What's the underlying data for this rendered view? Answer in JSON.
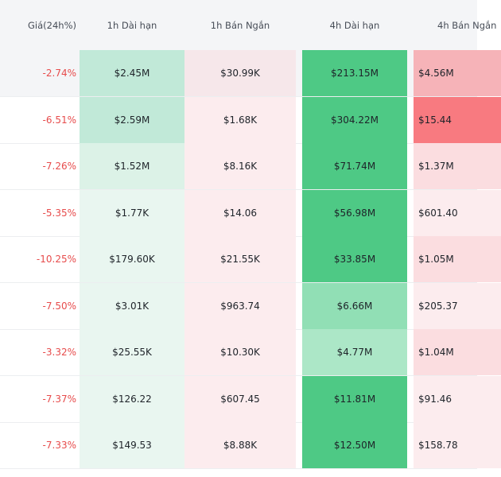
{
  "headers": {
    "price": "Giá(24h%)",
    "h1_long": "1h Dài hạn",
    "h1_short": "1h Bán Ngắn",
    "h4_long": "4h Dài hạn",
    "h4_short": "4h Bán Ngắn"
  },
  "rows": [
    {
      "price": "-2.74%",
      "h1_long": "$2.45M",
      "h1_short": "$30.99K",
      "h4_long": "$213.15M",
      "h4_short": "$4.56M"
    },
    {
      "price": "-6.51%",
      "h1_long": "$2.59M",
      "h1_short": "$1.68K",
      "h4_long": "$304.22M",
      "h4_short": "$15.44"
    },
    {
      "price": "-7.26%",
      "h1_long": "$1.52M",
      "h1_short": "$8.16K",
      "h4_long": "$71.74M",
      "h4_short": "$1.37M"
    },
    {
      "price": "-5.35%",
      "h1_long": "$1.77K",
      "h1_short": "$14.06",
      "h4_long": "$56.98M",
      "h4_short": "$601.40"
    },
    {
      "price": "-10.25%",
      "h1_long": "$179.60K",
      "h1_short": "$21.55K",
      "h4_long": "$33.85M",
      "h4_short": "$1.05M"
    },
    {
      "price": "-7.50%",
      "h1_long": "$3.01K",
      "h1_short": "$963.74",
      "h4_long": "$6.66M",
      "h4_short": "$205.37"
    },
    {
      "price": "-3.32%",
      "h1_long": "$25.55K",
      "h1_short": "$10.30K",
      "h4_long": "$4.77M",
      "h4_short": "$1.04M"
    },
    {
      "price": "-7.37%",
      "h1_long": "$126.22",
      "h1_short": "$607.45",
      "h4_long": "$11.81M",
      "h4_short": "$91.46"
    },
    {
      "price": "-7.33%",
      "h1_long": "$149.53",
      "h1_short": "$8.88K",
      "h4_long": "$12.50M",
      "h4_short": "$158.78"
    }
  ],
  "colors": {
    "price_negative": "#e74c4c",
    "h1_long_bg": [
      "#c1e9d8",
      "#c1e9d8",
      "#dcf2e7",
      "#e9f6f0",
      "#e9f6f0",
      "#e9f6f0",
      "#e9f6f0",
      "#e9f6f0",
      "#e9f6f0"
    ],
    "h1_short_bg": [
      "#f6e7ea",
      "#fcecee",
      "#fcecee",
      "#fcecee",
      "#fcecee",
      "#fcecee",
      "#fcecee",
      "#fcecee",
      "#fcecee"
    ],
    "h4_long_bg": [
      "#4ec985",
      "#4ec985",
      "#4ec985",
      "#4ec985",
      "#4ec985",
      "#91dfb5",
      "#ace7c7",
      "#4ec985",
      "#4ec985"
    ],
    "h4_short_bg": [
      "#f6b3b8",
      "#f87a80",
      "#fbdde0",
      "#fcecee",
      "#fbdde0",
      "#fcecee",
      "#fbdde0",
      "#fcecee",
      "#fcecee"
    ]
  }
}
